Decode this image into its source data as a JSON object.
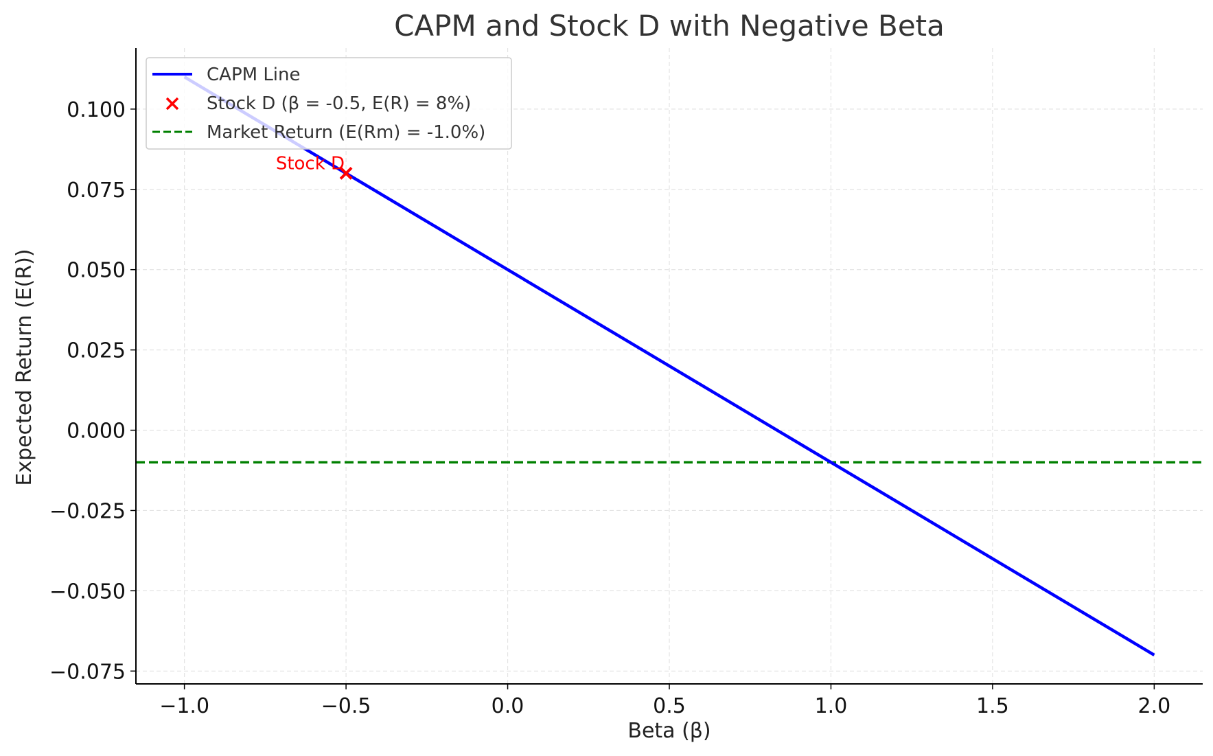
{
  "chart_data": {
    "type": "line",
    "title": "CAPM and Stock D with Negative Beta",
    "xlabel": "Beta (β)",
    "ylabel": "Expected Return (E(R))",
    "xlim": [
      -1.15,
      2.15
    ],
    "ylim": [
      -0.079,
      0.119
    ],
    "x_ticks": [
      -1.0,
      -0.5,
      0.0,
      0.5,
      1.0,
      1.5,
      2.0
    ],
    "x_tick_labels": [
      "−1.0",
      "−0.5",
      "0.0",
      "0.5",
      "1.0",
      "1.5",
      "2.0"
    ],
    "y_ticks": [
      0.1,
      0.075,
      0.05,
      0.025,
      0.0,
      -0.025,
      -0.05,
      -0.075
    ],
    "y_tick_labels": [
      "0.100",
      "0.075",
      "0.050",
      "0.025",
      "0.000",
      "−0.025",
      "−0.050",
      "−0.075"
    ],
    "grid": true,
    "legend_position": "upper-left",
    "series": [
      {
        "name": "CAPM Line",
        "kind": "line",
        "color": "#0000ff",
        "x": [
          -1.0,
          2.0
        ],
        "y": [
          0.11,
          -0.07
        ]
      },
      {
        "name": "Stock D (β = -0.5, E(R) = 8%)",
        "kind": "scatter",
        "marker": "x",
        "color": "#ff0000",
        "x": [
          -0.5
        ],
        "y": [
          0.08
        ]
      },
      {
        "name": "Market Return (E(Rm) = -1.0%)",
        "kind": "hline",
        "style": "dashed",
        "color": "#008000",
        "y": -0.01
      }
    ],
    "annotations": [
      {
        "text": "Stock D",
        "x": -0.5,
        "y": 0.08,
        "color": "#ff0000"
      }
    ]
  }
}
